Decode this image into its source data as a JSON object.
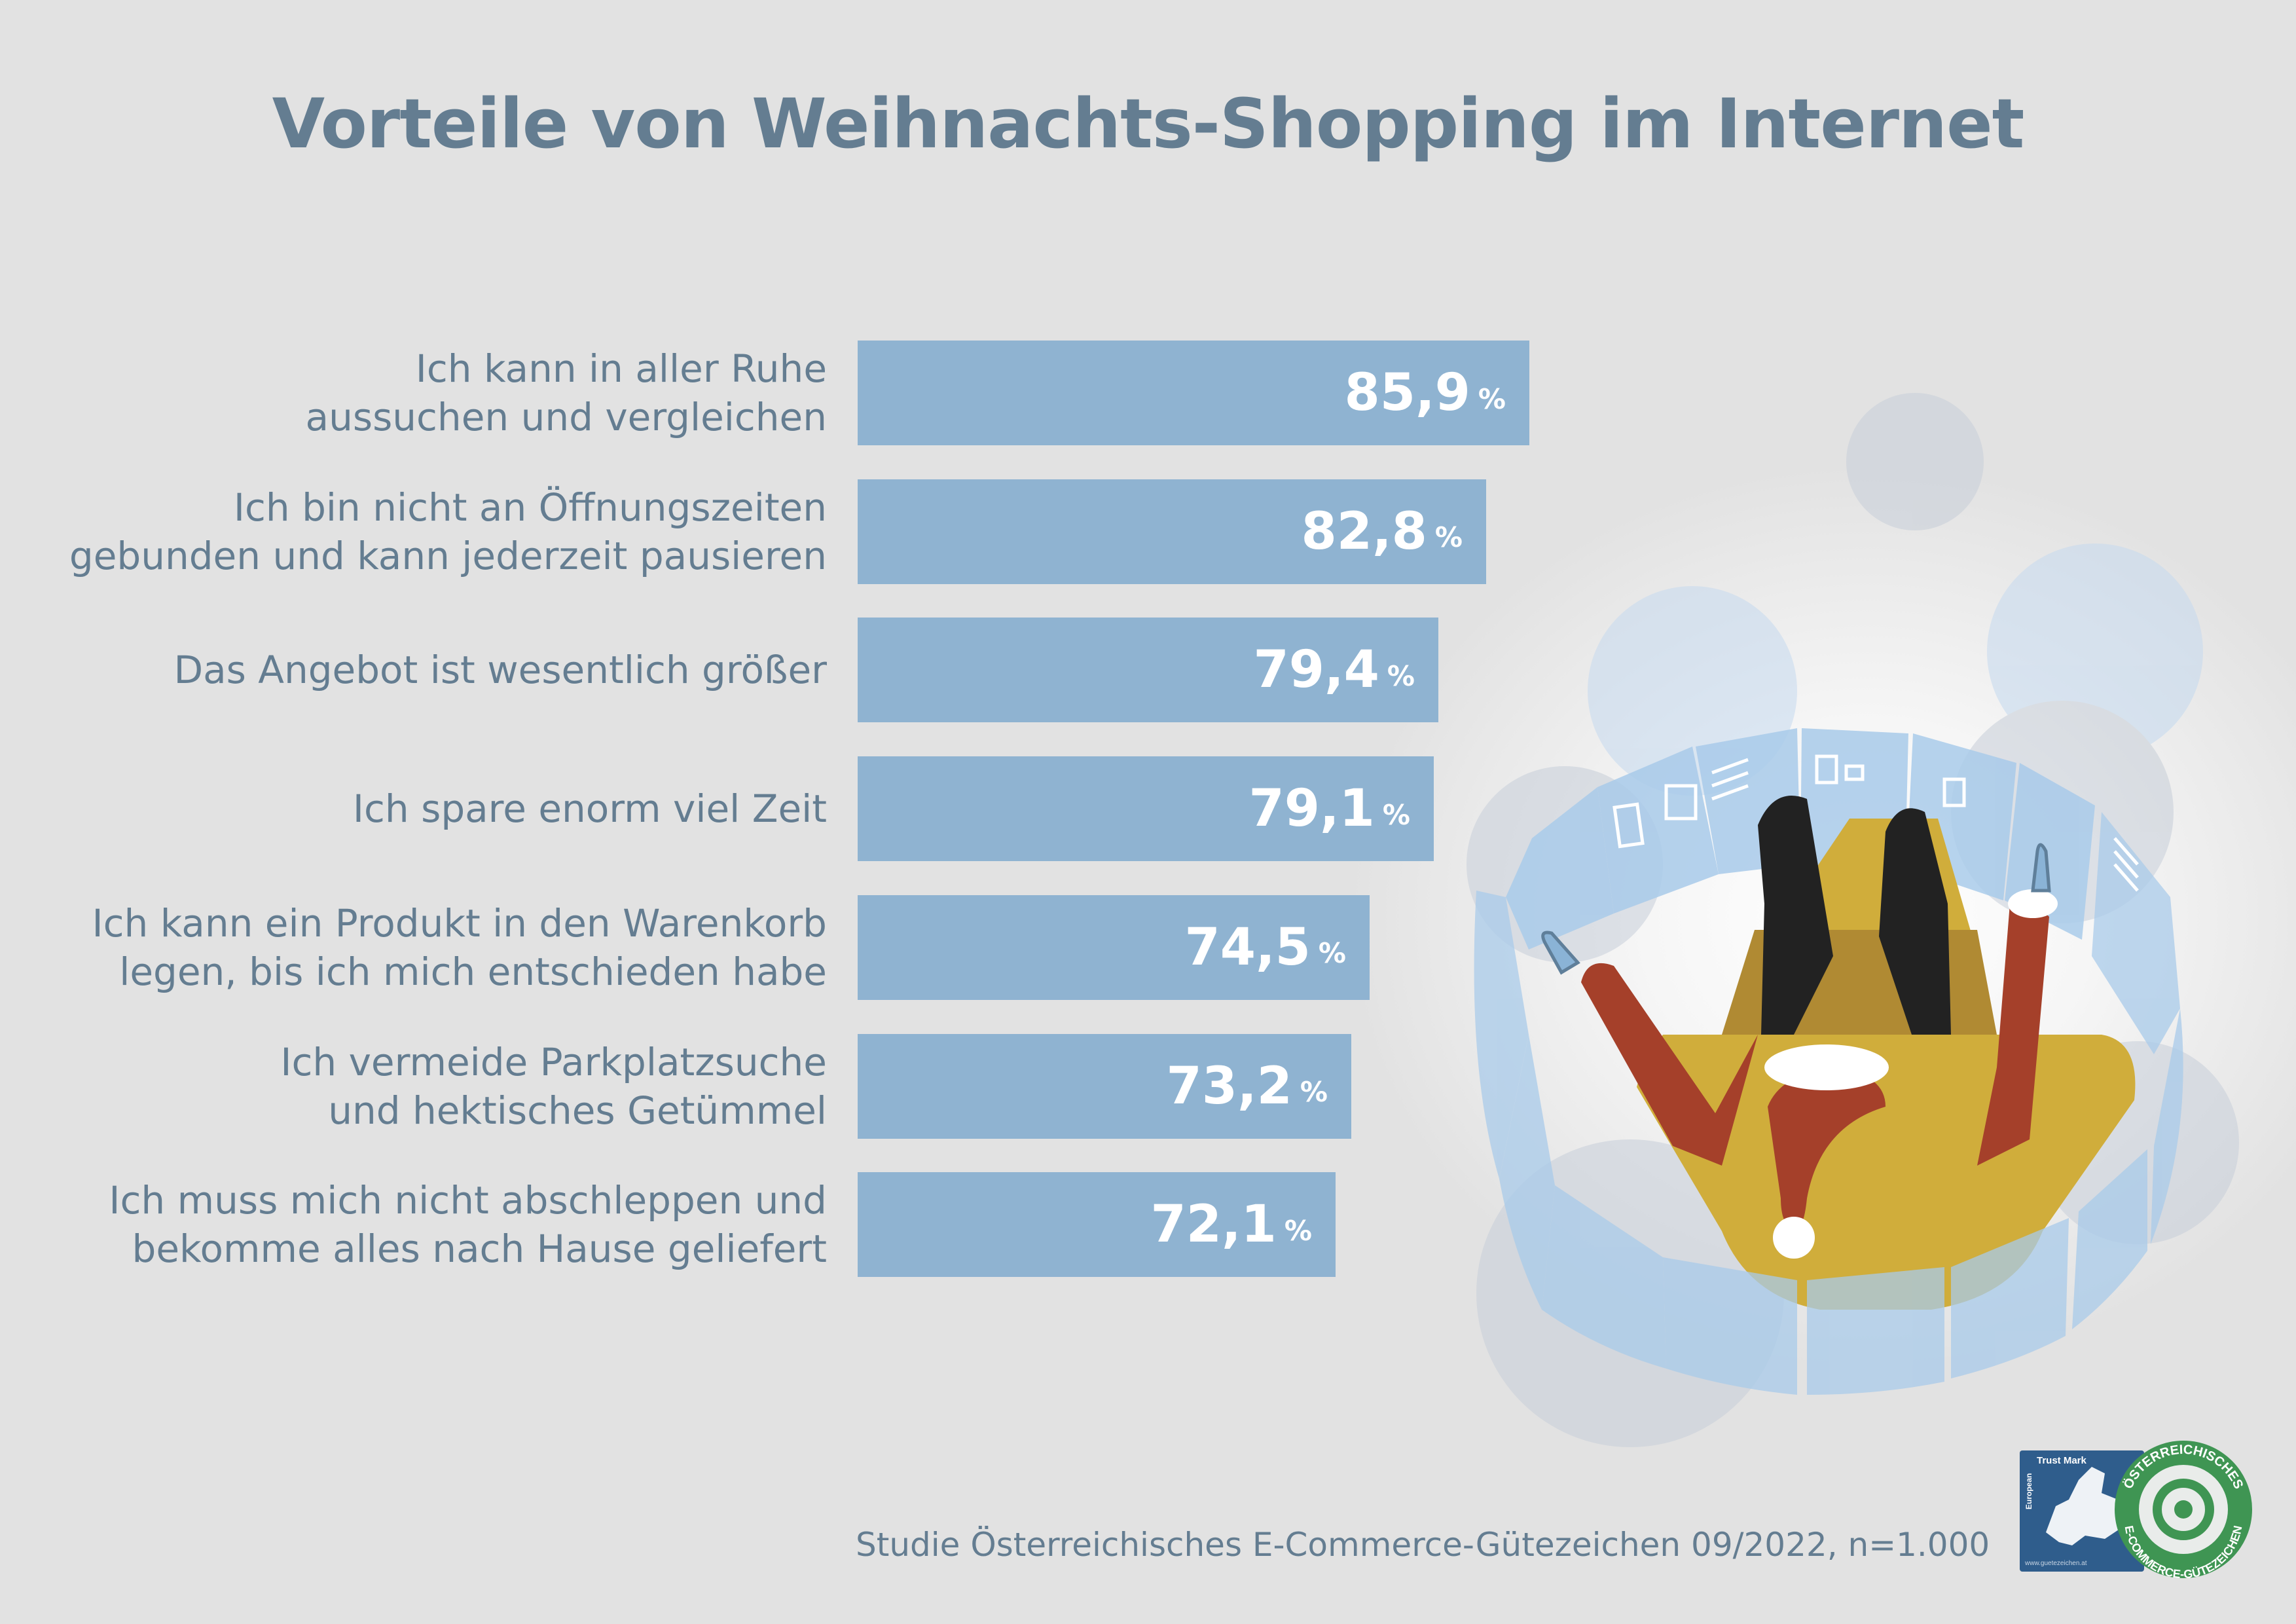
{
  "title": "Vorteile von Weihnachts-Shopping im Internet",
  "source": "Studie Österreichisches E-Commerce-Gütezeichen 09/2022, n=1.000",
  "colors": {
    "bar": "#8fb3d1",
    "text": "#647d91",
    "background": "#e2e2e2",
    "value_label": "#ffffff"
  },
  "logo": {
    "trust_mark": "Trust Mark",
    "european": "European",
    "url": "www.guetezeichen.at",
    "ring_top": "ÖSTERREICHISCHES",
    "ring_bottom": "E-COMMERCE-GÜTEZEICHEN"
  },
  "chart_data": {
    "type": "bar",
    "orientation": "horizontal",
    "title": "Vorteile von Weihnachts-Shopping im Internet",
    "xlabel": "",
    "ylabel": "",
    "unit": "%",
    "grid": false,
    "legend": "none",
    "categories": [
      [
        "Ich kann in aller Ruhe",
        "aussuchen und vergleichen"
      ],
      [
        "Ich bin nicht an Öffnungszeiten",
        "gebunden und kann jederzeit pausieren"
      ],
      [
        "Das Angebot ist wesentlich größer"
      ],
      [
        "Ich spare enorm viel Zeit"
      ],
      [
        "Ich kann ein Produkt in den Warenkorb",
        "legen, bis ich mich entschieden habe"
      ],
      [
        "Ich vermeide Parkplatzsuche",
        "und hektisches Getümmel"
      ],
      [
        "Ich muss mich nicht abschleppen und",
        "bekomme alles nach Hause geliefert"
      ]
    ],
    "values": [
      85.9,
      82.8,
      79.4,
      79.1,
      74.5,
      73.2,
      72.1
    ],
    "value_labels": [
      "85,9",
      "82,8",
      "79,4",
      "79,1",
      "74,5",
      "73,2",
      "72,1"
    ],
    "percent_sign": "%",
    "xlim": [
      38,
      85.9
    ]
  }
}
